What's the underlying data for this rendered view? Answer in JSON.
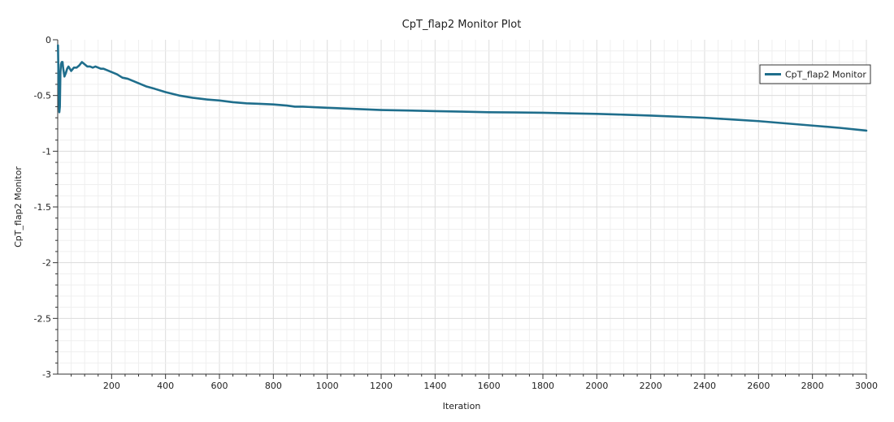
{
  "chart_data": {
    "type": "line",
    "title": "CpT_flap2 Monitor Plot",
    "xlabel": "Iteration",
    "ylabel": "CpT_flap2 Monitor",
    "xlim": [
      0,
      3000
    ],
    "ylim": [
      -3,
      0
    ],
    "x_ticks": [
      200,
      400,
      600,
      800,
      1000,
      1200,
      1400,
      1600,
      1800,
      2000,
      2200,
      2400,
      2600,
      2800,
      3000
    ],
    "x_tick_labels": [
      "200",
      "400",
      "600",
      "800",
      "1000",
      "1200",
      "1400",
      "1600",
      "1800",
      "2000",
      "2200",
      "2400",
      "2600",
      "2800",
      "3000"
    ],
    "y_ticks": [
      0,
      -0.5,
      -1,
      -1.5,
      -2,
      -2.5,
      -3
    ],
    "y_tick_labels": [
      "0",
      "-0.5",
      "-1",
      "-1.5",
      "-2",
      "-2.5",
      "-3"
    ],
    "grid": true,
    "legend_position": "top-right",
    "series": [
      {
        "name": "CpT_flap2 Monitor",
        "color": "#1f6e8c",
        "x": [
          1,
          3,
          6,
          8,
          10,
          12,
          15,
          18,
          20,
          25,
          30,
          35,
          40,
          45,
          50,
          60,
          70,
          80,
          90,
          100,
          110,
          120,
          130,
          140,
          150,
          160,
          170,
          180,
          190,
          200,
          220,
          240,
          260,
          280,
          300,
          330,
          360,
          400,
          450,
          500,
          550,
          600,
          650,
          700,
          750,
          800,
          850,
          880,
          910,
          950,
          1000,
          1100,
          1200,
          1300,
          1400,
          1500,
          1600,
          1700,
          1800,
          1900,
          2000,
          2100,
          2200,
          2300,
          2400,
          2500,
          2600,
          2700,
          2800,
          2900,
          3000
        ],
        "y": [
          -0.05,
          -0.35,
          -0.65,
          -0.6,
          -0.3,
          -0.22,
          -0.2,
          -0.2,
          -0.25,
          -0.33,
          -0.3,
          -0.26,
          -0.24,
          -0.26,
          -0.28,
          -0.25,
          -0.25,
          -0.23,
          -0.2,
          -0.22,
          -0.24,
          -0.24,
          -0.25,
          -0.24,
          -0.25,
          -0.26,
          -0.26,
          -0.27,
          -0.28,
          -0.29,
          -0.31,
          -0.34,
          -0.35,
          -0.37,
          -0.39,
          -0.42,
          -0.44,
          -0.47,
          -0.5,
          -0.52,
          -0.535,
          -0.545,
          -0.56,
          -0.57,
          -0.575,
          -0.58,
          -0.59,
          -0.6,
          -0.6,
          -0.605,
          -0.61,
          -0.62,
          -0.63,
          -0.635,
          -0.64,
          -0.645,
          -0.65,
          -0.652,
          -0.655,
          -0.66,
          -0.665,
          -0.672,
          -0.68,
          -0.69,
          -0.7,
          -0.715,
          -0.73,
          -0.75,
          -0.77,
          -0.79,
          -0.815
        ]
      }
    ]
  }
}
